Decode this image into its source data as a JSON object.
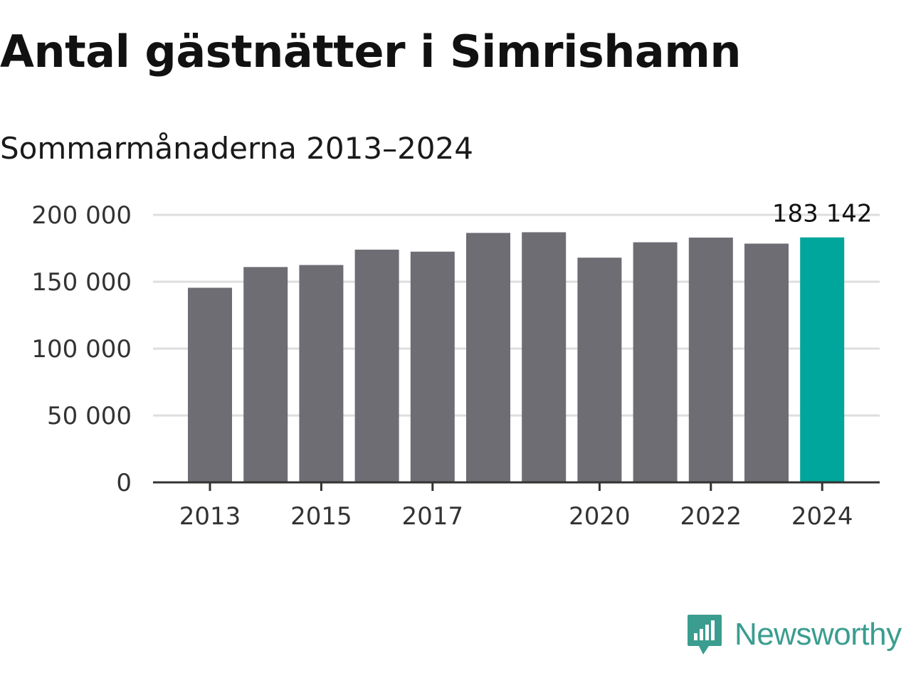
{
  "header": {
    "title": "Antal gästnätter i Simrishamn",
    "subtitle": "Sommarmånaderna 2013–2024"
  },
  "brand": {
    "name": "Newsworthy",
    "icon": "newsworthy-logo-icon",
    "color": "#3a9d8f"
  },
  "colors": {
    "bar_default": "#6e6d74",
    "bar_highlight": "#00a59b",
    "grid": "#dedede",
    "axis": "#333333"
  },
  "chart_data": {
    "type": "bar",
    "title": "Antal gästnätter i Simrishamn",
    "subtitle": "Sommarmånaderna 2013–2024",
    "xlabel": "",
    "ylabel": "",
    "categories": [
      "2013",
      "2014",
      "2015",
      "2016",
      "2017",
      "2018",
      "2019",
      "2020",
      "2021",
      "2022",
      "2023",
      "2024"
    ],
    "values": [
      145500,
      161000,
      162500,
      174000,
      172500,
      186500,
      187000,
      168000,
      179500,
      183000,
      178500,
      183142
    ],
    "highlight_index": 11,
    "ylim": [
      0,
      200000
    ],
    "yticks": [
      0,
      50000,
      100000,
      150000,
      200000
    ],
    "ytick_labels": [
      "0",
      "50 000",
      "100 000",
      "150 000",
      "200 000"
    ],
    "xtick_labels": [
      "2013",
      "2015",
      "2017",
      "2020",
      "2022",
      "2024"
    ],
    "annotation": {
      "category": "2024",
      "text": "183 142"
    },
    "grid": true,
    "legend": "none"
  }
}
